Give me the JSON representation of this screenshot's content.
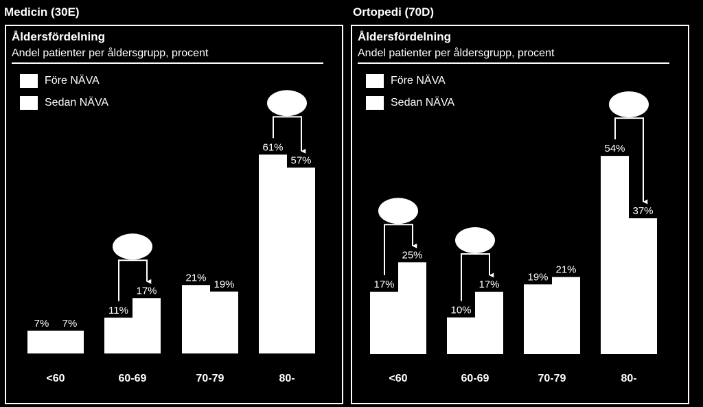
{
  "chart_data": [
    {
      "type": "bar",
      "panel_title": "Medicin (30E)",
      "title": "Åldersfördelning",
      "subtitle": "Andel patienter per åldersgrupp, procent",
      "categories": [
        "<60",
        "60-69",
        "70-79",
        "80-"
      ],
      "series": [
        {
          "name": "Före NÄVA",
          "values": [
            7,
            11,
            21,
            61
          ]
        },
        {
          "name": "Sedan NÄVA",
          "values": [
            7,
            17,
            19,
            57
          ]
        }
      ],
      "value_labels": [
        [
          "7%",
          "11%",
          "21%",
          "61%"
        ],
        [
          "7%",
          "17%",
          "19%",
          "57%"
        ]
      ],
      "change_arrows": [
        "60-69",
        "80-"
      ],
      "ylim": [
        0,
        65
      ],
      "legend": "top-left",
      "grid": false
    },
    {
      "type": "bar",
      "panel_title": "Ortopedi (70D)",
      "title": "Åldersfördelning",
      "subtitle": "Andel patienter per åldersgrupp, procent",
      "categories": [
        "<60",
        "60-69",
        "70-79",
        "80-"
      ],
      "series": [
        {
          "name": "Före NÄVA",
          "values": [
            17,
            10,
            19,
            54
          ]
        },
        {
          "name": "Sedan NÄVA",
          "values": [
            25,
            17,
            21,
            37
          ]
        }
      ],
      "value_labels": [
        [
          "17%",
          "10%",
          "19%",
          "54%"
        ],
        [
          "25%",
          "17%",
          "21%",
          "37%"
        ]
      ],
      "change_arrows": [
        "<60",
        "60-69",
        "80-"
      ],
      "ylim": [
        0,
        60
      ],
      "legend": "top-left",
      "grid": false
    }
  ]
}
